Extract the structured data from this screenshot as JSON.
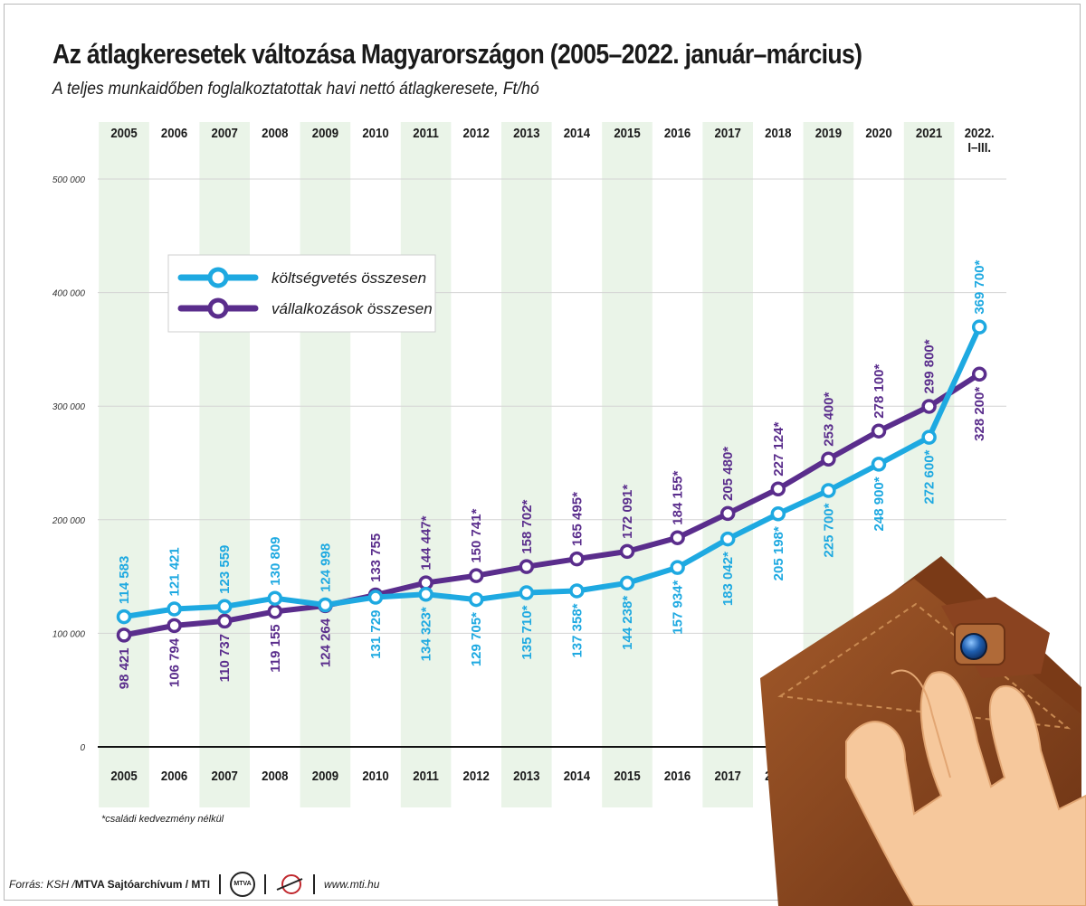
{
  "header": {
    "title": "Az átlagkeresetek változása Magyarországon (2005–2022. január–március)",
    "subtitle": "A teljes munkaidőben foglalkoztatottak havi nettó átlagkeresete, Ft/hó"
  },
  "footnote": "*családi kedvezmény nélkül",
  "footer": {
    "source_prefix": "Forrás: KSH / ",
    "organization": "MTVA Sajtóarchívum / MTI",
    "mtva_logo_text": "MTVA",
    "url": "www.mti.hu"
  },
  "chart_data": {
    "type": "line",
    "title": "Az átlagkeresetek változása Magyarországon (2005–2022. január–március)",
    "subtitle": "A teljes munkaidőben foglalkoztatottak havi nettó átlagkeresete, Ft/hó",
    "x": [
      "2005",
      "2006",
      "2007",
      "2008",
      "2009",
      "2010",
      "2011",
      "2012",
      "2013",
      "2014",
      "2015",
      "2016",
      "2017",
      "2018",
      "2019",
      "2020",
      "2021",
      "2022. I–III."
    ],
    "x_display": [
      [
        "2005"
      ],
      [
        "2006"
      ],
      [
        "2007"
      ],
      [
        "2008"
      ],
      [
        "2009"
      ],
      [
        "2010"
      ],
      [
        "2011"
      ],
      [
        "2012"
      ],
      [
        "2013"
      ],
      [
        "2014"
      ],
      [
        "2015"
      ],
      [
        "2016"
      ],
      [
        "2017"
      ],
      [
        "2018"
      ],
      [
        "2019"
      ],
      [
        "2020"
      ],
      [
        "2021"
      ],
      [
        "2022.",
        "I–III."
      ]
    ],
    "ylim": [
      0,
      500000
    ],
    "y_ticks": [
      0,
      100000,
      200000,
      300000,
      400000,
      500000
    ],
    "y_tick_labels": [
      "0",
      "100 000",
      "200 000",
      "300 000",
      "400 000",
      "500 000"
    ],
    "grid": true,
    "legend_position": "top-left",
    "series": [
      {
        "name": "költségvetés összesen",
        "color": "#1ea9e1",
        "values": [
          114583,
          121421,
          123559,
          130809,
          124998,
          131729,
          134323,
          129705,
          135710,
          137358,
          144238,
          157934,
          183042,
          205198,
          225700,
          248900,
          272600,
          369700
        ],
        "labels": [
          "114 583",
          "121 421",
          "123 559",
          "130 809",
          "124 998",
          "131 729",
          "134 323*",
          "129 705*",
          "135 710*",
          "137 358*",
          "144 238*",
          "157 934*",
          "183 042*",
          "205 198*",
          "225 700*",
          "248 900*",
          "272 600*",
          "369 700*"
        ]
      },
      {
        "name": "vállalkozások összesen",
        "color": "#5a2d8c",
        "values": [
          98421,
          106794,
          110737,
          119155,
          124264,
          133755,
          144447,
          150741,
          158702,
          165495,
          172091,
          184155,
          205480,
          227124,
          253400,
          278100,
          299800,
          328200
        ],
        "labels": [
          "98 421",
          "106 794",
          "110 737",
          "119 155",
          "124 264",
          "133 755",
          "144 447*",
          "150 741*",
          "158 702*",
          "165 495*",
          "172 091*",
          "184 155*",
          "205 480*",
          "227 124*",
          "253 400*",
          "278 100*",
          "299 800*",
          "328 200*"
        ]
      }
    ]
  },
  "decor": {
    "illustration": "wallet-in-hand-icon"
  }
}
